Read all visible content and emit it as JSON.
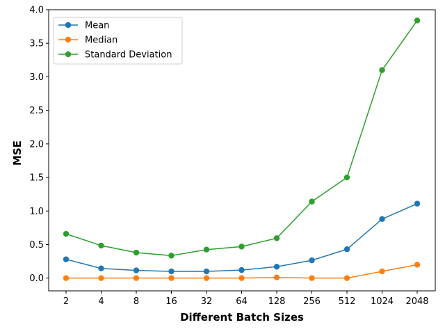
{
  "chart_data": {
    "type": "line",
    "title": "",
    "xlabel": "Different Batch Sizes",
    "ylabel": "MSE",
    "categories": [
      "2",
      "4",
      "8",
      "16",
      "32",
      "64",
      "128",
      "256",
      "512",
      "1024",
      "2048"
    ],
    "ylim": [
      -0.19,
      4.0
    ],
    "yticks": [
      "0.0",
      "0.5",
      "1.0",
      "1.5",
      "2.0",
      "2.5",
      "3.0",
      "3.5",
      "4.0"
    ],
    "grid": false,
    "legend_position": "top-left",
    "series": [
      {
        "name": "Mean",
        "color": "#1f77b4",
        "values": [
          0.28,
          0.145,
          0.115,
          0.1,
          0.1,
          0.12,
          0.17,
          0.265,
          0.43,
          0.88,
          1.11
        ]
      },
      {
        "name": "Median",
        "color": "#ff7f0e",
        "values": [
          0.0,
          0.0,
          0.0,
          0.0,
          0.0,
          0.0,
          0.01,
          0.0,
          0.0,
          0.1,
          0.2
        ]
      },
      {
        "name": "Standard Deviation",
        "color": "#2ca02c",
        "values": [
          0.66,
          0.485,
          0.38,
          0.335,
          0.425,
          0.47,
          0.595,
          1.14,
          1.5,
          3.1,
          3.84
        ]
      }
    ]
  }
}
